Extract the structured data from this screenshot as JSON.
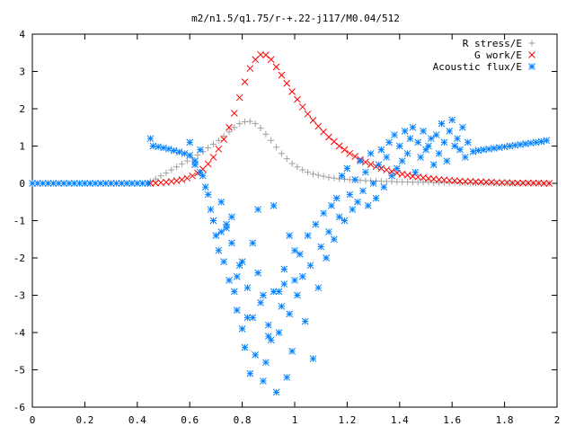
{
  "chart_data": {
    "type": "scatter",
    "title": "m2/n1.5/q1.75/r-+.22-j117/M0.04/512",
    "xlabel": "",
    "ylabel": "",
    "xlim": [
      0,
      2
    ],
    "ylim": [
      -6,
      4
    ],
    "x_ticks": [
      "0",
      "0.2",
      "0.4",
      "0.6",
      "0.8",
      "1",
      "1.2",
      "1.4",
      "1.6",
      "1.8",
      "2"
    ],
    "y_ticks": [
      "4",
      "3",
      "2",
      "1",
      "0",
      "-1",
      "-2",
      "-3",
      "-4",
      "-5",
      "-6"
    ],
    "grid": false,
    "legend_position": "top-right",
    "series": [
      {
        "name": "R stress/E",
        "marker": "+",
        "color": "#a0a0a0",
        "x": [
          0.45,
          0.47,
          0.49,
          0.51,
          0.53,
          0.55,
          0.57,
          0.59,
          0.61,
          0.63,
          0.65,
          0.67,
          0.69,
          0.71,
          0.73,
          0.75,
          0.77,
          0.79,
          0.81,
          0.83,
          0.85,
          0.87,
          0.89,
          0.91,
          0.93,
          0.95,
          0.97,
          0.99,
          1.01,
          1.03,
          1.05,
          1.07,
          1.09,
          1.11,
          1.13,
          1.15,
          1.17,
          1.19,
          1.21,
          1.23,
          1.25,
          1.27,
          1.29,
          1.31,
          1.33,
          1.35,
          1.37,
          1.39,
          1.41,
          1.43,
          1.45,
          1.47,
          1.49,
          1.51,
          1.53,
          1.55,
          1.57,
          1.59,
          1.61,
          1.63,
          1.65,
          1.67,
          1.69,
          1.71,
          1.73,
          1.75,
          1.77,
          1.79,
          1.81,
          1.83,
          1.85,
          1.87,
          1.89,
          1.91,
          1.93,
          1.95,
          1.97
        ],
        "y": [
          0.05,
          0.12,
          0.2,
          0.28,
          0.36,
          0.44,
          0.52,
          0.6,
          0.68,
          0.76,
          0.85,
          0.95,
          1.05,
          1.15,
          1.27,
          1.38,
          1.5,
          1.6,
          1.65,
          1.66,
          1.6,
          1.48,
          1.32,
          1.15,
          0.97,
          0.8,
          0.66,
          0.53,
          0.44,
          0.36,
          0.3,
          0.25,
          0.22,
          0.19,
          0.16,
          0.14,
          0.12,
          0.11,
          0.1,
          0.09,
          0.08,
          0.07,
          0.07,
          0.06,
          0.06,
          0.05,
          0.05,
          0.04,
          0.04,
          0.04,
          0.03,
          0.03,
          0.03,
          0.03,
          0.02,
          0.02,
          0.02,
          0.02,
          0.02,
          0.01,
          0.01,
          0.01,
          0.01,
          0.01,
          0.01,
          0.01,
          0.0,
          0.0,
          0.0,
          0.0,
          0.0,
          0.0,
          0.0,
          0.0,
          0.0,
          0.0,
          0.0
        ]
      },
      {
        "name": "G work/E",
        "marker": "x",
        "color": "#ff0000",
        "x": [
          0.45,
          0.47,
          0.49,
          0.51,
          0.53,
          0.55,
          0.57,
          0.59,
          0.61,
          0.63,
          0.65,
          0.67,
          0.69,
          0.71,
          0.73,
          0.75,
          0.77,
          0.79,
          0.81,
          0.83,
          0.85,
          0.87,
          0.89,
          0.91,
          0.93,
          0.95,
          0.97,
          0.99,
          1.01,
          1.03,
          1.05,
          1.07,
          1.09,
          1.11,
          1.13,
          1.15,
          1.17,
          1.19,
          1.21,
          1.23,
          1.25,
          1.27,
          1.29,
          1.31,
          1.33,
          1.35,
          1.37,
          1.39,
          1.41,
          1.43,
          1.45,
          1.47,
          1.49,
          1.51,
          1.53,
          1.55,
          1.57,
          1.59,
          1.61,
          1.63,
          1.65,
          1.67,
          1.69,
          1.71,
          1.73,
          1.75,
          1.77,
          1.79,
          1.81,
          1.83,
          1.85,
          1.87,
          1.89,
          1.91,
          1.93,
          1.95,
          1.97
        ],
        "y": [
          0.0,
          0.01,
          0.02,
          0.03,
          0.05,
          0.07,
          0.1,
          0.14,
          0.2,
          0.28,
          0.38,
          0.52,
          0.7,
          0.92,
          1.18,
          1.5,
          1.88,
          2.3,
          2.72,
          3.08,
          3.32,
          3.45,
          3.44,
          3.32,
          3.12,
          2.9,
          2.68,
          2.46,
          2.25,
          2.05,
          1.86,
          1.69,
          1.53,
          1.38,
          1.24,
          1.12,
          1.0,
          0.9,
          0.8,
          0.72,
          0.64,
          0.57,
          0.51,
          0.45,
          0.4,
          0.36,
          0.32,
          0.28,
          0.25,
          0.22,
          0.19,
          0.17,
          0.15,
          0.13,
          0.12,
          0.1,
          0.09,
          0.08,
          0.07,
          0.06,
          0.05,
          0.05,
          0.04,
          0.04,
          0.03,
          0.03,
          0.02,
          0.02,
          0.02,
          0.01,
          0.01,
          0.01,
          0.01,
          0.01,
          0.01,
          0.0,
          0.0
        ]
      },
      {
        "name": "Acoustic flux/E",
        "marker": "*",
        "color": "#0080ff",
        "x": [
          0.0,
          0.02,
          0.04,
          0.06,
          0.08,
          0.1,
          0.12,
          0.14,
          0.16,
          0.18,
          0.2,
          0.22,
          0.24,
          0.26,
          0.28,
          0.3,
          0.32,
          0.34,
          0.36,
          0.38,
          0.4,
          0.42,
          0.44,
          0.45,
          0.46,
          0.48,
          0.5,
          0.52,
          0.54,
          0.56,
          0.58,
          0.6,
          0.62,
          0.64,
          0.6,
          0.62,
          0.64,
          0.65,
          0.66,
          0.67,
          0.68,
          0.69,
          0.7,
          0.71,
          0.72,
          0.73,
          0.74,
          0.75,
          0.76,
          0.77,
          0.78,
          0.79,
          0.8,
          0.81,
          0.82,
          0.83,
          0.84,
          0.85,
          0.86,
          0.87,
          0.88,
          0.89,
          0.9,
          0.91,
          0.92,
          0.93,
          0.94,
          0.95,
          0.96,
          0.97,
          0.98,
          0.99,
          1.0,
          1.01,
          1.02,
          1.03,
          1.04,
          1.05,
          1.06,
          1.07,
          1.08,
          1.09,
          1.1,
          1.11,
          1.12,
          1.13,
          1.14,
          1.15,
          1.16,
          1.17,
          1.18,
          1.19,
          1.2,
          1.21,
          1.22,
          1.23,
          1.24,
          1.25,
          1.26,
          1.27,
          1.28,
          1.29,
          1.3,
          1.31,
          1.32,
          1.33,
          1.34,
          1.35,
          1.36,
          1.37,
          1.38,
          1.39,
          1.4,
          1.41,
          1.42,
          1.43,
          1.44,
          1.45,
          1.46,
          1.47,
          1.48,
          1.49,
          1.5,
          1.51,
          1.52,
          1.53,
          1.54,
          1.55,
          1.56,
          1.57,
          1.58,
          1.59,
          1.6,
          1.61,
          1.62,
          1.63,
          1.64,
          1.65,
          1.66,
          1.68,
          1.7,
          1.72,
          1.74,
          1.76,
          1.78,
          1.8,
          1.82,
          1.84,
          1.86,
          1.88,
          1.9,
          1.92,
          1.94,
          1.96,
          0.72,
          0.76,
          0.8,
          0.84,
          0.88,
          0.92,
          0.96,
          1.0,
          0.74,
          0.78,
          0.82,
          0.86,
          0.9,
          0.94,
          0.98
        ],
        "y": [
          0.0,
          0.0,
          0.0,
          0.0,
          0.0,
          0.0,
          0.0,
          0.0,
          0.0,
          0.0,
          0.0,
          0.0,
          0.0,
          0.0,
          0.0,
          0.0,
          0.0,
          0.0,
          0.0,
          0.0,
          0.0,
          0.0,
          0.0,
          1.2,
          1.0,
          0.98,
          0.95,
          0.92,
          0.88,
          0.84,
          0.8,
          0.75,
          0.6,
          0.3,
          1.1,
          0.5,
          0.9,
          0.2,
          -0.1,
          -0.3,
          -0.7,
          -1.0,
          -1.4,
          -1.8,
          -0.5,
          -2.1,
          -1.2,
          -2.6,
          -1.6,
          -2.9,
          -3.4,
          -2.2,
          -3.9,
          -4.4,
          -2.8,
          -5.1,
          -3.6,
          -4.6,
          -2.4,
          -3.2,
          -5.3,
          -4.8,
          -3.8,
          -4.2,
          -2.9,
          -5.6,
          -4.0,
          -3.3,
          -2.7,
          -5.2,
          -3.5,
          -4.5,
          -2.6,
          -3.0,
          -1.9,
          -2.5,
          -3.7,
          -1.4,
          -2.2,
          -4.7,
          -1.1,
          -2.8,
          -1.7,
          -0.8,
          -2.0,
          -1.3,
          -0.6,
          -1.5,
          -0.4,
          -0.9,
          0.2,
          -1.0,
          0.4,
          -0.3,
          -0.7,
          0.1,
          -0.5,
          0.6,
          -0.2,
          0.3,
          -0.6,
          0.8,
          0.0,
          -0.4,
          0.5,
          0.9,
          -0.1,
          0.7,
          1.1,
          0.2,
          1.3,
          0.4,
          1.0,
          0.6,
          1.4,
          0.8,
          1.2,
          1.5,
          0.3,
          1.1,
          0.7,
          1.4,
          0.9,
          1.0,
          1.2,
          0.5,
          1.3,
          0.8,
          1.6,
          1.1,
          0.6,
          1.4,
          1.7,
          1.0,
          1.2,
          0.9,
          1.5,
          0.7,
          1.1,
          0.85,
          0.88,
          0.9,
          0.92,
          0.94,
          0.96,
          0.98,
          1.0,
          1.02,
          1.04,
          1.06,
          1.08,
          1.1,
          1.12,
          1.15,
          -1.3,
          -0.9,
          -2.1,
          -1.6,
          -3.0,
          -0.6,
          -2.3,
          -1.8,
          -1.1,
          -2.5,
          -3.6,
          -0.7,
          -4.1,
          -2.9,
          -1.4
        ]
      }
    ]
  }
}
